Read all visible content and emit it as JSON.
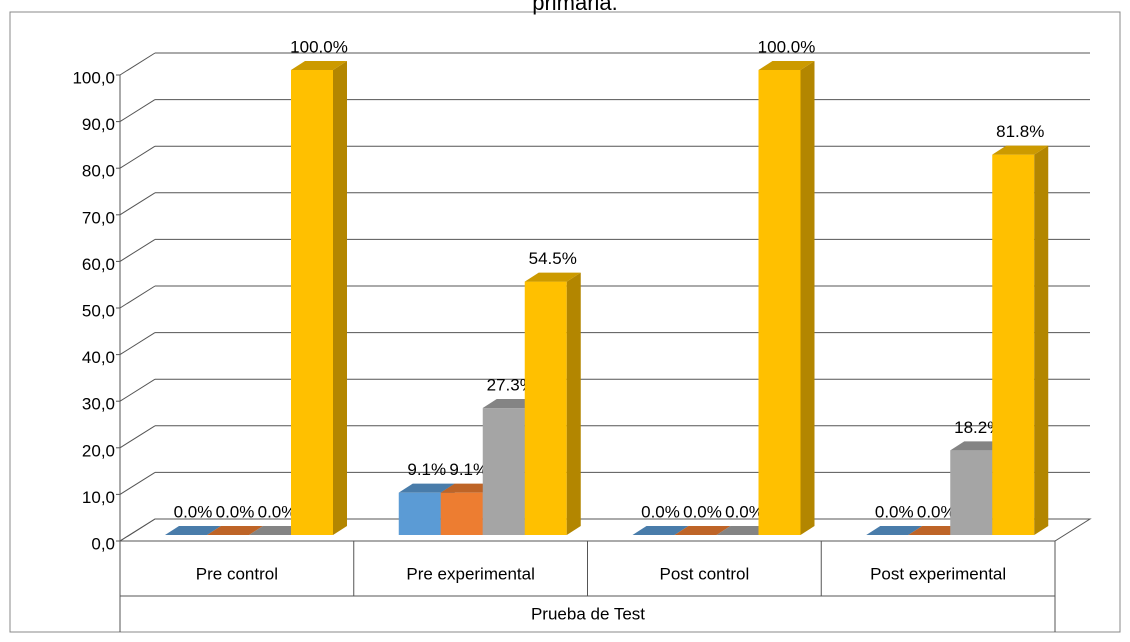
{
  "chart_data": {
    "type": "bar3d",
    "title": "primaria.",
    "x_label": "Prueba de Test",
    "categories": [
      "Pre control",
      "Pre experimental",
      "Post control",
      "Post experimental"
    ],
    "series": [
      {
        "color": "#5b9bd5",
        "values": [
          0,
          9.1,
          0,
          0
        ],
        "value_labels": [
          "0.0%",
          "9.1%",
          "0.0%",
          "0.0%"
        ]
      },
      {
        "color": "#ed7d31",
        "values": [
          0,
          9.1,
          0,
          0
        ],
        "value_labels": [
          "0.0%",
          "9.1%",
          "0.0%",
          "0.0%"
        ]
      },
      {
        "color": "#a5a5a5",
        "values": [
          0,
          27.3,
          0,
          18.2
        ],
        "value_labels": [
          "0.0%",
          "27.3%",
          "0.0%",
          "18.2%"
        ]
      },
      {
        "color": "#ffc000",
        "values": [
          100,
          54.5,
          100,
          81.8
        ],
        "value_labels": [
          "100.0%",
          "54.5%",
          "100.0%",
          "81.8%"
        ]
      }
    ],
    "ylim": [
      0,
      100
    ],
    "yticks": [
      {
        "value": 0,
        "label": "0,0"
      },
      {
        "value": 10,
        "label": "10,0"
      },
      {
        "value": 20,
        "label": "20,0"
      },
      {
        "value": 30,
        "label": "30,0"
      },
      {
        "value": 40,
        "label": "40,0"
      },
      {
        "value": 50,
        "label": "50,0"
      },
      {
        "value": 60,
        "label": "60,0"
      },
      {
        "value": 70,
        "label": "70,0"
      },
      {
        "value": 80,
        "label": "80,0"
      },
      {
        "value": 90,
        "label": "90,0"
      },
      {
        "value": 100,
        "label": "100,0"
      }
    ],
    "grid": true
  }
}
